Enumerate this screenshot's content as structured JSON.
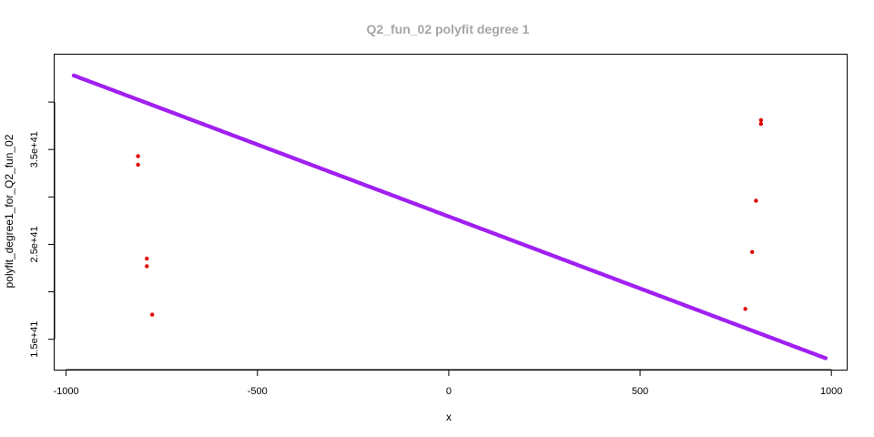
{
  "chart_data": {
    "type": "scatter",
    "title": "Q2_fun_02 polyfit degree 1",
    "xlabel": "x",
    "ylabel": "polyfit_degree1_for_Q2_fun_02",
    "xlim": [
      -1030,
      1040
    ],
    "ylim": [
      1.18e+41,
      4.5e+41
    ],
    "x_ticks": [
      -1000,
      -500,
      0,
      500,
      1000
    ],
    "x_tick_labels": [
      "-1000",
      "-500",
      "0",
      "500",
      "1000"
    ],
    "y_ticks": [
      1.5e+41,
      2e+41,
      2.5e+41,
      3e+41,
      3.5e+41,
      4e+41
    ],
    "y_tick_labels": [
      "1.5e+41",
      "",
      "2.5e+41",
      "",
      "3.5e+41",
      ""
    ],
    "grid": false,
    "series": [
      {
        "kind": "line-of-points",
        "color": "#a020f0",
        "x_start": -980,
        "x_end": 985,
        "y_start": 4.28e+41,
        "y_end": 1.3e+41
      },
      {
        "kind": "points",
        "color": "#e00000",
        "points": [
          [
            -812,
            3.43e+41
          ],
          [
            -812,
            3.34e+41
          ],
          [
            -789,
            2.35e+41
          ],
          [
            -789,
            2.27e+41
          ],
          [
            -775,
            1.76e+41
          ],
          [
            775,
            1.82e+41
          ],
          [
            793,
            2.42e+41
          ],
          [
            803,
            2.96e+41
          ],
          [
            816,
            3.81e+41
          ],
          [
            816,
            3.77e+41
          ]
        ]
      }
    ]
  }
}
